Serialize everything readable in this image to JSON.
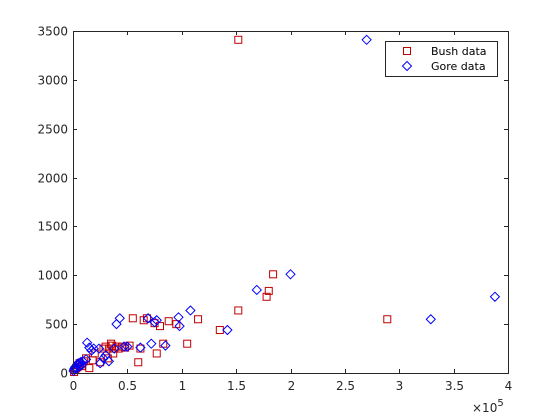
{
  "chart_data": {
    "type": "scatter",
    "title": "",
    "xlabel": "",
    "ylabel": "",
    "xlim": [
      0,
      400000
    ],
    "ylim": [
      0,
      3500
    ],
    "x_ticks": [
      0,
      50000,
      100000,
      150000,
      200000,
      250000,
      300000,
      350000,
      400000
    ],
    "x_tick_labels": [
      "0",
      "0.5",
      "1",
      "1.5",
      "2",
      "2.5",
      "3",
      "3.5",
      "4"
    ],
    "x_exponent_label": "×10",
    "x_exponent_power": "5",
    "y_ticks": [
      0,
      500,
      1000,
      1500,
      2000,
      2500,
      3000,
      3500
    ],
    "y_tick_labels": [
      "0",
      "500",
      "1000",
      "1500",
      "2000",
      "2500",
      "3000",
      "3500"
    ],
    "grid": false,
    "legend_position": "top-right",
    "series": [
      {
        "name": "Bush data",
        "marker": "square",
        "color": "#C00000",
        "points": [
          [
            1000,
            10
          ],
          [
            2000,
            30
          ],
          [
            3000,
            50
          ],
          [
            4000,
            60
          ],
          [
            5000,
            80
          ],
          [
            6000,
            100
          ],
          [
            8000,
            70
          ],
          [
            10000,
            120
          ],
          [
            12000,
            150
          ],
          [
            15000,
            50
          ],
          [
            18000,
            130
          ],
          [
            20000,
            200
          ],
          [
            25000,
            110
          ],
          [
            28000,
            250
          ],
          [
            30000,
            270
          ],
          [
            32000,
            150
          ],
          [
            33000,
            250
          ],
          [
            35000,
            300
          ],
          [
            36000,
            280
          ],
          [
            37000,
            200
          ],
          [
            38000,
            250
          ],
          [
            40000,
            270
          ],
          [
            42000,
            250
          ],
          [
            45000,
            270
          ],
          [
            48000,
            260
          ],
          [
            52000,
            280
          ],
          [
            55000,
            560
          ],
          [
            60000,
            110
          ],
          [
            62000,
            250
          ],
          [
            65000,
            540
          ],
          [
            68000,
            560
          ],
          [
            75000,
            510
          ],
          [
            77000,
            200
          ],
          [
            80000,
            480
          ],
          [
            83000,
            300
          ],
          [
            88000,
            530
          ],
          [
            95000,
            500
          ],
          [
            105000,
            300
          ],
          [
            115000,
            550
          ],
          [
            135000,
            440
          ],
          [
            152000,
            640
          ],
          [
            152000,
            3410
          ],
          [
            178000,
            780
          ],
          [
            180000,
            840
          ],
          [
            184000,
            1010
          ],
          [
            289000,
            550
          ]
        ]
      },
      {
        "name": "Gore data",
        "marker": "circle",
        "color": "#0000FF",
        "points": [
          [
            500,
            20
          ],
          [
            1000,
            40
          ],
          [
            2000,
            60
          ],
          [
            3000,
            40
          ],
          [
            4000,
            90
          ],
          [
            5000,
            100
          ],
          [
            6000,
            70
          ],
          [
            7000,
            110
          ],
          [
            8000,
            80
          ],
          [
            9000,
            120
          ],
          [
            12000,
            140
          ],
          [
            13000,
            310
          ],
          [
            15000,
            260
          ],
          [
            17000,
            230
          ],
          [
            19000,
            250
          ],
          [
            24000,
            250
          ],
          [
            25000,
            100
          ],
          [
            28000,
            150
          ],
          [
            30000,
            180
          ],
          [
            33000,
            120
          ],
          [
            38000,
            250
          ],
          [
            40000,
            500
          ],
          [
            43000,
            560
          ],
          [
            47000,
            270
          ],
          [
            50000,
            270
          ],
          [
            62000,
            260
          ],
          [
            69000,
            560
          ],
          [
            72000,
            300
          ],
          [
            75000,
            520
          ],
          [
            77000,
            540
          ],
          [
            85000,
            280
          ],
          [
            97000,
            570
          ],
          [
            98000,
            480
          ],
          [
            108000,
            640
          ],
          [
            142000,
            440
          ],
          [
            169000,
            850
          ],
          [
            200000,
            1010
          ],
          [
            270000,
            3410
          ],
          [
            329000,
            550
          ],
          [
            388000,
            780
          ]
        ]
      }
    ]
  }
}
